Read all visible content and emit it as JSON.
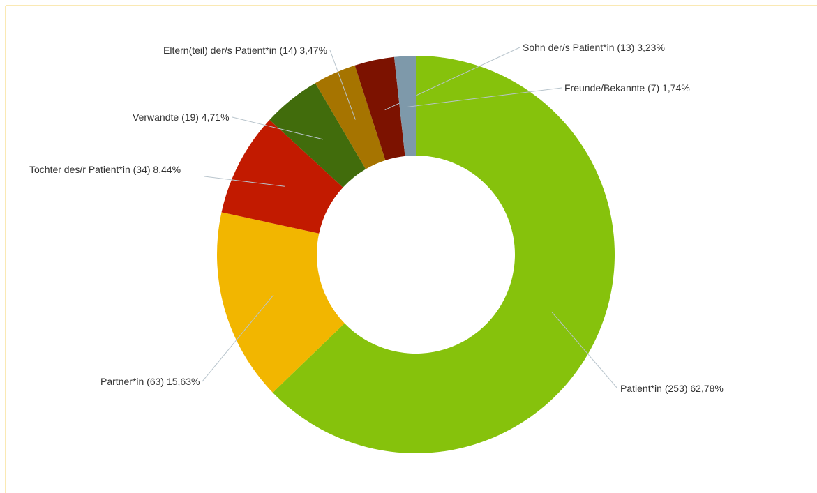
{
  "chart_data": {
    "type": "donut",
    "categories": [
      "Patient*in",
      "Partner*in",
      "Tochter des/r Patient*in",
      "Verwandte",
      "Eltern(teil) der/s Patient*in",
      "Sohn der/s Patient*in",
      "Freunde/Bekannte"
    ],
    "values": [
      253,
      63,
      34,
      19,
      14,
      13,
      7
    ],
    "value_labels": [
      "(253) 62,78%",
      "(63) 15,63%",
      "(34) 8,44%",
      "(19) 4,71%",
      "(14) 3,47%",
      "(13) 3,23%",
      "(7) 1,74%"
    ],
    "colors": [
      "#86c20c",
      "#f2b600",
      "#c21a00",
      "#416c0c",
      "#a67400",
      "#7c1200",
      "#7e99aa"
    ]
  }
}
